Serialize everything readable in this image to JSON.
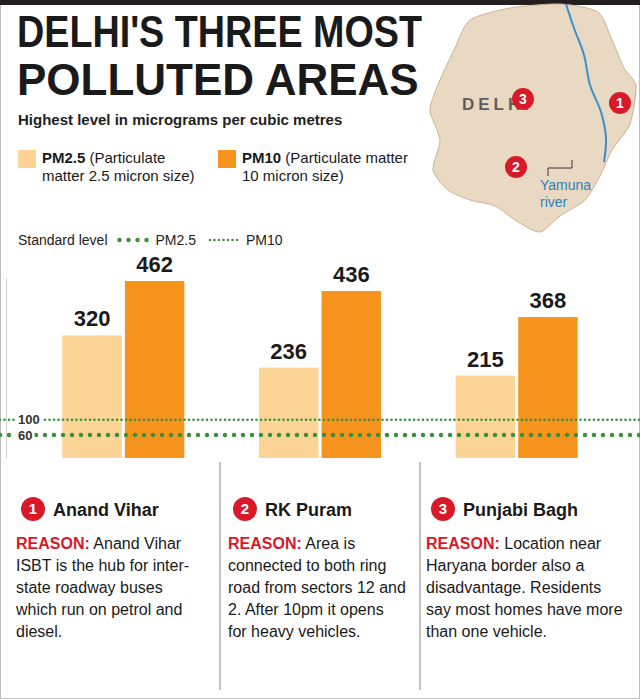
{
  "chart_data": {
    "type": "bar",
    "title": "DELHI'S THREE MOST POLLUTED AREAS",
    "subtitle": "Highest level in micrograms per cubic metres",
    "categories": [
      "Anand Vihar",
      "RK Puram",
      "Punjabi Bagh"
    ],
    "category_numbers": [
      "1",
      "2",
      "3"
    ],
    "series": [
      {
        "name": "PM2.5 (Particulate matter 2.5 micron size)",
        "color": "#fcd495",
        "values": [
          320,
          236,
          215
        ]
      },
      {
        "name": "PM10 (Particulate matter 10 micron size)",
        "color": "#f7941d",
        "values": [
          462,
          436,
          368
        ]
      }
    ],
    "ylim": [
      0,
      470
    ],
    "tick_labels": false,
    "data_labels": true,
    "legend": "top-left",
    "standard_levels": {
      "label": "Standard level",
      "lines": [
        {
          "name": "PM2.5",
          "value": 60,
          "color": "#3d8f3d",
          "line_style": "dots"
        },
        {
          "name": "PM10",
          "value": 100,
          "color": "#3d8f3d",
          "line_style": "dotted"
        }
      ]
    },
    "reason_label": "REASON:",
    "reasons": [
      "Anand Vihar ISBT is the hub for inter-state roadway buses which run on petrol and diesel.",
      "Area is connected to both ring road from sectors 12 and 2. After 10pm it opens for heavy vehicles.",
      "Location near Haryana border also a disadvantage. Residents say most homes have more than one vehicle."
    ]
  },
  "map": {
    "label": "DELHI",
    "river": "Yamuna river"
  }
}
